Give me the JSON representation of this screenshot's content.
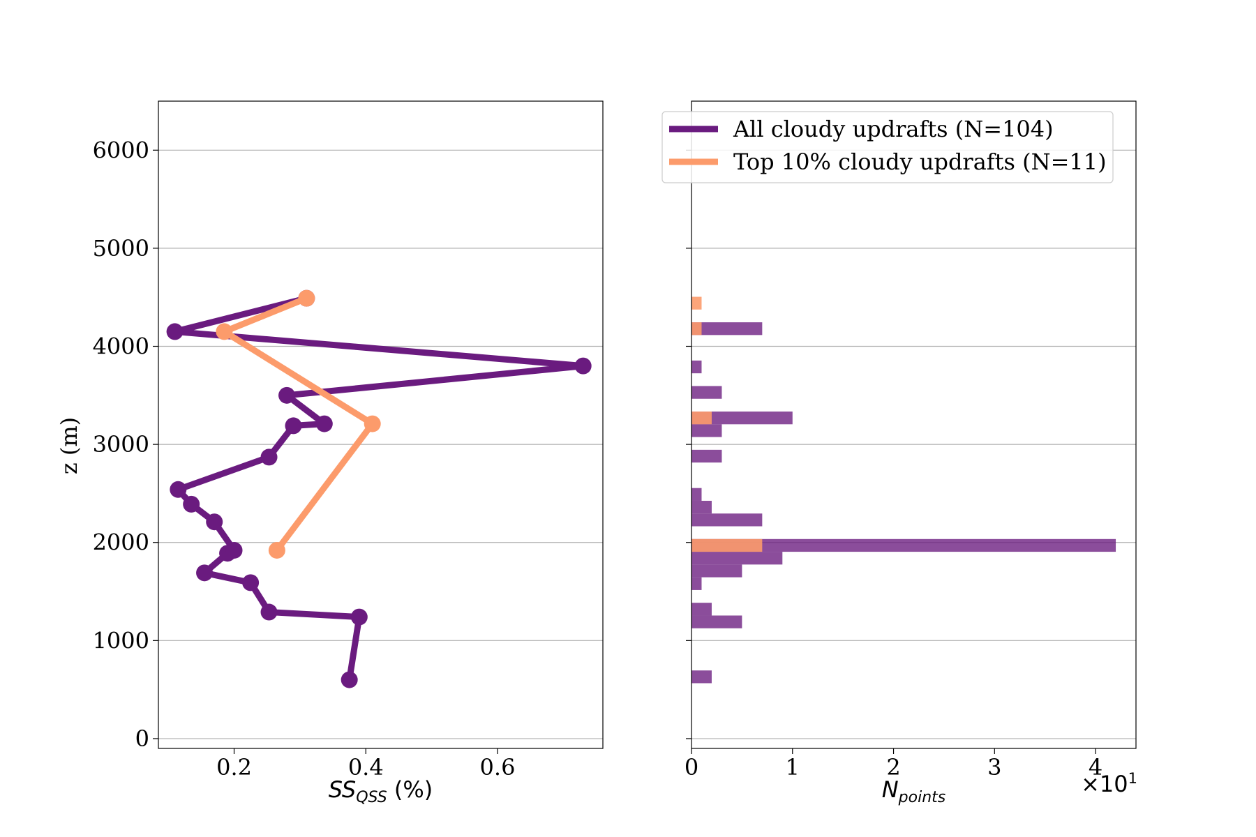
{
  "chart_data": [
    {
      "type": "line",
      "panel": "left",
      "xlabel_base": "SS",
      "xlabel_sub": "QSS",
      "xlabel_suffix": " (%)",
      "ylabel": "z (m)",
      "xlim": [
        0.085,
        0.76
      ],
      "ylim": [
        -100,
        6500
      ],
      "xticks": [
        0.2,
        0.4,
        0.6
      ],
      "xtick_labels": [
        "0.2",
        "0.4",
        "0.6"
      ],
      "yticks": [
        0,
        1000,
        2000,
        3000,
        4000,
        5000,
        6000
      ],
      "ytick_labels": [
        "0",
        "1000",
        "2000",
        "3000",
        "4000",
        "5000",
        "6000"
      ],
      "grid": "horizontal",
      "series": [
        {
          "name": "All cloudy updrafts (N=104)",
          "color": "#6a1b7f",
          "x": [
            0.375,
            0.39,
            0.253,
            0.225,
            0.155,
            0.19,
            0.2,
            0.17,
            0.135,
            0.115,
            0.253,
            0.29,
            0.337,
            0.28,
            0.73,
            0.11,
            0.31
          ],
          "y": [
            600,
            1240,
            1290,
            1590,
            1690,
            1890,
            1920,
            2210,
            2390,
            2540,
            2870,
            3190,
            3210,
            3500,
            3800,
            4150,
            4490
          ]
        },
        {
          "name": "Top 10% cloudy updrafts (N=11)",
          "color": "#fc9b6b",
          "x": [
            0.265,
            0.41,
            0.185,
            0.31
          ],
          "y": [
            1920,
            3210,
            4150,
            4490
          ]
        }
      ]
    },
    {
      "type": "bar",
      "orientation": "horizontal",
      "panel": "right",
      "xlabel_base": "N",
      "xlabel_sub": "points",
      "x_multiplier": "×10",
      "x_multiplier_exp": "1",
      "xlim": [
        0,
        4.4
      ],
      "ylim": [
        -100,
        6500
      ],
      "xticks": [
        0,
        1,
        2,
        3,
        4
      ],
      "xtick_labels": [
        "0",
        "1",
        "2",
        "3",
        "4"
      ],
      "grid": "horizontal",
      "legend": "upper-right",
      "bin_height": 130,
      "series": [
        {
          "name": "All cloudy updrafts (N=104)",
          "color": "#6a1b7f",
          "bars": [
            {
              "y": 630,
              "value": 0.2
            },
            {
              "y": 1190,
              "value": 0.5
            },
            {
              "y": 1320,
              "value": 0.2
            },
            {
              "y": 1580,
              "value": 0.1
            },
            {
              "y": 1710,
              "value": 0.5
            },
            {
              "y": 1840,
              "value": 0.9
            },
            {
              "y": 1970,
              "value": 4.2
            },
            {
              "y": 2230,
              "value": 0.7
            },
            {
              "y": 2360,
              "value": 0.2
            },
            {
              "y": 2490,
              "value": 0.1
            },
            {
              "y": 2880,
              "value": 0.3
            },
            {
              "y": 3140,
              "value": 0.3
            },
            {
              "y": 3270,
              "value": 1.0
            },
            {
              "y": 3530,
              "value": 0.3
            },
            {
              "y": 3790,
              "value": 0.1
            },
            {
              "y": 4180,
              "value": 0.7
            }
          ]
        },
        {
          "name": "Top 10% cloudy updrafts (N=11)",
          "color": "#fc9b6b",
          "bars": [
            {
              "y": 1970,
              "value": 0.7
            },
            {
              "y": 3270,
              "value": 0.2
            },
            {
              "y": 4180,
              "value": 0.1
            },
            {
              "y": 4440,
              "value": 0.1
            }
          ]
        }
      ]
    }
  ]
}
